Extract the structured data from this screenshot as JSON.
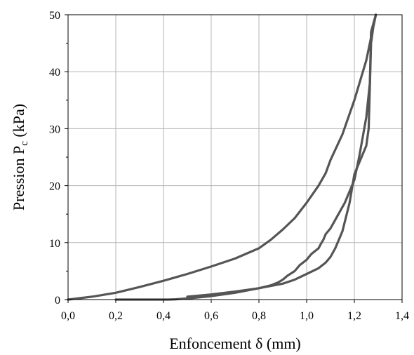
{
  "chart_data": {
    "type": "line",
    "title": "",
    "xlabel": "Enfoncement δ (mm)",
    "ylabel": {
      "prefix": "Pression P",
      "sub": "c",
      "suffix": " (kPa)"
    },
    "xlim": [
      0,
      1.4
    ],
    "ylim": [
      0,
      50
    ],
    "x_ticks": [
      0,
      0.2,
      0.4,
      0.6,
      0.8,
      1.0,
      1.2,
      1.4
    ],
    "x_tick_labels": [
      "0,0",
      "0,2",
      "0,4",
      "0,6",
      "0,8",
      "1,0",
      "1,2",
      "1,4"
    ],
    "y_ticks": [
      0,
      10,
      20,
      30,
      40,
      50
    ],
    "y_tick_labels": [
      "0",
      "10",
      "20",
      "30",
      "40",
      "50"
    ],
    "grid": true,
    "legend": "none",
    "line_color": "#555555",
    "series": [
      {
        "x": [
          0.0,
          0.1,
          0.2,
          0.3,
          0.4,
          0.5,
          0.6,
          0.7,
          0.8,
          0.85,
          0.9,
          0.95,
          1.0,
          1.05,
          1.08,
          1.1,
          1.15,
          1.2,
          1.25,
          1.29
        ],
        "y": [
          0.0,
          0.5,
          1.2,
          2.2,
          3.3,
          4.5,
          5.8,
          7.2,
          9.0,
          10.5,
          12.3,
          14.3,
          17.0,
          20.0,
          22.2,
          24.5,
          29.0,
          35.0,
          42.0,
          50.0
        ]
      },
      {
        "x": [
          1.29,
          1.27,
          1.265,
          1.25,
          1.22,
          1.2,
          1.16,
          1.12,
          1.1,
          1.08,
          1.07,
          1.06,
          1.05,
          1.02,
          1.0,
          0.97,
          0.95,
          0.92,
          0.9,
          0.88,
          0.85,
          0.8,
          0.7,
          0.6,
          0.5,
          0.45,
          0.42,
          0.3,
          0.2
        ],
        "y": [
          50.0,
          47.0,
          38.0,
          32.0,
          25.0,
          21.0,
          17.0,
          14.0,
          12.5,
          11.5,
          10.5,
          9.8,
          9.0,
          8.0,
          7.0,
          6.0,
          5.0,
          4.2,
          3.5,
          3.0,
          2.5,
          2.0,
          1.2,
          0.6,
          0.2,
          0.05,
          0.0,
          0.0,
          0.0
        ]
      },
      {
        "x": [
          1.29,
          1.28,
          1.27,
          1.26,
          1.25,
          1.23,
          1.2,
          1.18,
          1.15,
          1.12,
          1.1,
          1.08,
          1.05,
          1.0,
          0.95,
          0.9,
          0.85,
          0.8,
          0.7,
          0.6,
          0.5
        ],
        "y": [
          50.0,
          48.0,
          45.0,
          30.0,
          27.0,
          25.0,
          22.0,
          17.0,
          12.0,
          9.0,
          7.5,
          6.5,
          5.5,
          4.5,
          3.5,
          2.8,
          2.4,
          2.0,
          1.4,
          0.9,
          0.5
        ]
      }
    ]
  }
}
